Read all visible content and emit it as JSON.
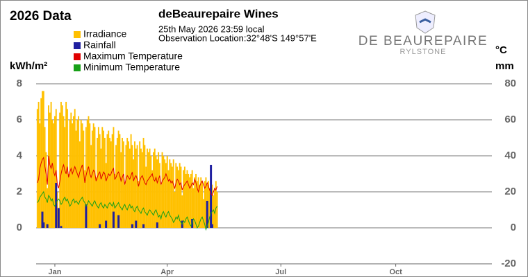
{
  "chart_data": {
    "type": "combo",
    "title": "2026 Data",
    "subtitle": "deBeaurepaire Wines",
    "timestamp": "25th May 2026  23:59 local",
    "location": "Observation Location:32°48'S 149°57'E",
    "brand": "DE BEAUREPAIRE",
    "brand_sub": "RYLSTONE",
    "ylabel": "kWh/m²",
    "y2labels": [
      "°C",
      "mm"
    ],
    "xlim": [
      0,
      365
    ],
    "xticks": [
      {
        "value": 15,
        "label": "Jan"
      },
      {
        "value": 105,
        "label": "Apr"
      },
      {
        "value": 196,
        "label": "Jul"
      },
      {
        "value": 288,
        "label": "Oct"
      }
    ],
    "ylim": [
      -2,
      8
    ],
    "yticks": [
      0,
      2,
      4,
      6,
      8
    ],
    "y2lim": [
      -20,
      80
    ],
    "y2ticks": [
      -20,
      0,
      20,
      40,
      60,
      80
    ],
    "grid": true,
    "x": [
      1,
      2,
      3,
      4,
      5,
      6,
      7,
      8,
      9,
      10,
      11,
      12,
      13,
      14,
      15,
      16,
      17,
      18,
      19,
      20,
      21,
      22,
      23,
      24,
      25,
      26,
      27,
      28,
      29,
      30,
      31,
      32,
      33,
      34,
      35,
      36,
      37,
      38,
      39,
      40,
      41,
      42,
      43,
      44,
      45,
      46,
      47,
      48,
      49,
      50,
      51,
      52,
      53,
      54,
      55,
      56,
      57,
      58,
      59,
      60,
      61,
      62,
      63,
      64,
      65,
      66,
      67,
      68,
      69,
      70,
      71,
      72,
      73,
      74,
      75,
      76,
      77,
      78,
      79,
      80,
      81,
      82,
      83,
      84,
      85,
      86,
      87,
      88,
      89,
      90,
      91,
      92,
      93,
      94,
      95,
      96,
      97,
      98,
      99,
      100,
      101,
      102,
      103,
      104,
      105,
      106,
      107,
      108,
      109,
      110,
      111,
      112,
      113,
      114,
      115,
      116,
      117,
      118,
      119,
      120,
      121,
      122,
      123,
      124,
      125,
      126,
      127,
      128,
      129,
      130,
      131,
      132,
      133,
      134,
      135,
      136,
      137,
      138,
      139,
      140,
      141,
      142,
      143,
      144,
      145
    ],
    "series": [
      {
        "name": "Irradiance",
        "type": "bar",
        "axis": "y",
        "color": "#ffc000",
        "values": [
          6.6,
          7.0,
          5.8,
          7.2,
          7.6,
          7.6,
          5.6,
          4.2,
          2.2,
          6.8,
          6.4,
          7.0,
          6.0,
          5.8,
          6.2,
          6.6,
          2.0,
          0.6,
          6.4,
          7.0,
          6.8,
          6.2,
          5.6,
          7.0,
          6.6,
          3.0,
          6.0,
          6.4,
          5.8,
          6.2,
          6.6,
          5.4,
          6.0,
          6.2,
          4.8,
          6.0,
          5.8,
          5.4,
          3.2,
          5.6,
          6.0,
          6.2,
          5.8,
          4.6,
          5.4,
          5.8,
          5.6,
          2.8,
          5.0,
          5.6,
          5.2,
          4.4,
          5.6,
          5.4,
          5.0,
          3.6,
          5.2,
          5.4,
          5.0,
          4.8,
          5.2,
          5.6,
          3.0,
          4.6,
          5.0,
          5.4,
          5.2,
          4.2,
          5.0,
          4.8,
          2.4,
          4.6,
          5.0,
          4.8,
          4.4,
          5.2,
          4.6,
          3.8,
          4.8,
          4.4,
          4.6,
          2.6,
          4.8,
          4.4,
          4.2,
          5.0,
          4.6,
          3.4,
          4.4,
          4.2,
          4.4,
          4.0,
          3.2,
          4.2,
          4.4,
          4.0,
          3.8,
          4.2,
          3.6,
          2.4,
          4.2,
          4.0,
          3.8,
          3.6,
          4.0,
          3.2,
          3.8,
          3.6,
          3.4,
          3.8,
          2.0,
          3.6,
          3.4,
          3.2,
          3.6,
          3.4,
          1.8,
          3.2,
          3.4,
          3.0,
          3.2,
          3.0,
          2.8,
          3.0,
          3.2,
          2.2,
          2.8,
          3.0,
          2.6,
          2.8,
          2.4,
          2.8,
          2.6,
          1.6,
          2.6,
          2.8,
          2.4,
          2.6,
          2.2,
          2.8,
          2.4,
          1.8,
          2.2,
          2.6,
          2.0
        ]
      },
      {
        "name": "Rainfall",
        "type": "bar",
        "axis": "y2",
        "color": "#1f1fa0",
        "values": [
          0,
          0,
          0,
          0,
          9,
          3,
          0,
          0,
          2,
          0,
          0,
          0,
          0,
          0,
          0,
          25,
          0,
          11,
          0,
          1,
          0,
          0,
          0,
          0,
          0,
          0,
          0,
          0,
          0,
          0,
          0,
          0,
          0,
          0,
          0,
          0,
          0,
          0,
          0,
          13,
          0,
          0,
          0,
          0,
          0,
          0,
          0,
          0,
          0,
          0,
          2,
          0,
          0,
          0,
          0,
          4,
          0,
          0,
          0,
          0,
          0,
          9,
          0,
          0,
          0,
          7,
          0,
          0,
          0,
          0,
          0,
          0,
          0,
          0,
          0,
          0,
          2,
          0,
          0,
          4,
          0,
          0,
          0,
          0,
          0,
          2,
          0,
          0,
          0,
          0,
          0,
          0,
          0,
          0,
          0,
          0,
          3,
          0,
          0,
          0,
          0,
          0,
          0,
          0,
          0,
          0,
          0,
          0,
          0,
          0,
          0,
          0,
          0,
          0,
          0,
          0,
          4,
          0,
          0,
          0,
          0,
          0,
          0,
          0,
          5,
          0,
          0,
          0,
          0,
          0,
          0,
          0,
          0,
          0,
          0,
          0,
          15,
          0,
          0,
          35,
          2,
          0,
          0,
          0,
          0
        ]
      },
      {
        "name": "Maximum Temperature",
        "type": "line",
        "axis": "y2",
        "color": "#e00000",
        "values": [
          25,
          27,
          33,
          36,
          38,
          39,
          34,
          30,
          24,
          40,
          35,
          33,
          36,
          31,
          29,
          32,
          24,
          22,
          26,
          30,
          33,
          35,
          32,
          30,
          34,
          28,
          31,
          33,
          30,
          32,
          34,
          32,
          30,
          28,
          31,
          33,
          35,
          31,
          25,
          29,
          32,
          34,
          30,
          28,
          30,
          32,
          31,
          26,
          28,
          30,
          31,
          27,
          29,
          31,
          30,
          26,
          28,
          30,
          29,
          30,
          32,
          33,
          27,
          28,
          30,
          31,
          29,
          26,
          28,
          30,
          24,
          27,
          29,
          28,
          27,
          29,
          31,
          26,
          28,
          29,
          27,
          23,
          26,
          28,
          29,
          27,
          25,
          24,
          26,
          27,
          28,
          29,
          30,
          27,
          26,
          28,
          25,
          27,
          29,
          24,
          26,
          27,
          28,
          30,
          28,
          26,
          27,
          25,
          26,
          24,
          22,
          25,
          27,
          26,
          24,
          25,
          21,
          23,
          24,
          25,
          26,
          24,
          22,
          23,
          25,
          24,
          27,
          25,
          22,
          20,
          23,
          25,
          26,
          24,
          22,
          23,
          25,
          23,
          21,
          19,
          18,
          20,
          22,
          21,
          23
        ]
      },
      {
        "name": "Minimum Temperature",
        "type": "line",
        "axis": "y2",
        "color": "#18a018",
        "values": [
          14,
          15,
          17,
          18,
          19,
          20,
          17,
          16,
          14,
          18,
          17,
          15,
          16,
          13,
          12,
          14,
          15,
          16,
          15,
          13,
          14,
          16,
          17,
          15,
          16,
          14,
          12,
          13,
          15,
          16,
          14,
          15,
          14,
          13,
          15,
          16,
          17,
          15,
          14,
          12,
          13,
          15,
          14,
          13,
          12,
          14,
          15,
          13,
          12,
          11,
          13,
          14,
          12,
          11,
          13,
          12,
          11,
          13,
          14,
          13,
          12,
          14,
          11,
          12,
          13,
          14,
          12,
          11,
          10,
          12,
          13,
          11,
          10,
          12,
          13,
          11,
          12,
          10,
          9,
          11,
          12,
          10,
          9,
          8,
          10,
          11,
          9,
          8,
          7,
          9,
          10,
          9,
          8,
          7,
          9,
          10,
          8,
          6,
          7,
          5,
          8,
          9,
          7,
          6,
          8,
          9,
          7,
          6,
          5,
          3,
          4,
          6,
          5,
          7,
          4,
          3,
          2,
          4,
          3,
          5,
          6,
          4,
          2,
          1,
          3,
          5,
          4,
          2,
          0,
          1,
          3,
          5,
          6,
          4,
          2,
          -1,
          1,
          3,
          6,
          8,
          9,
          10,
          8,
          11,
          12
        ]
      }
    ]
  }
}
